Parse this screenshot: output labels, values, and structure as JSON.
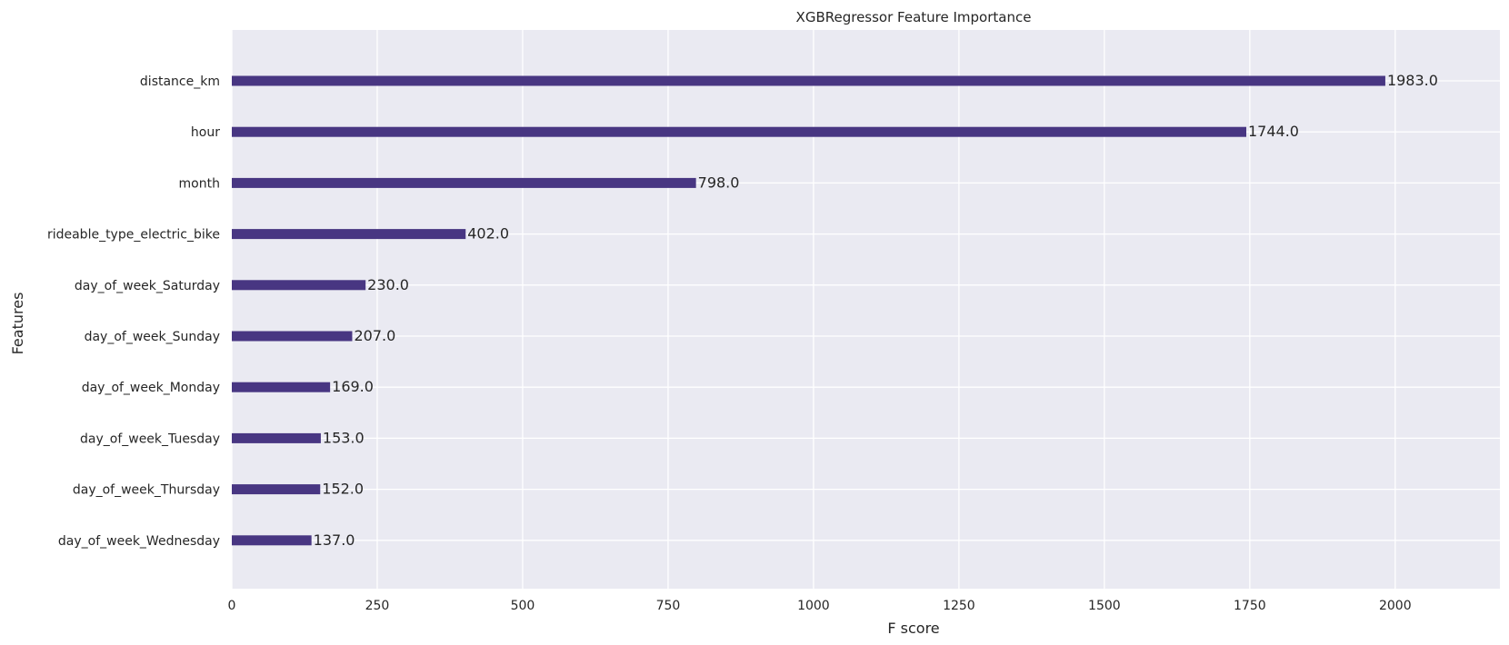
{
  "chart_data": {
    "type": "bar",
    "orientation": "horizontal",
    "title": "XGBRegressor Feature Importance",
    "xlabel": "F score",
    "ylabel": "Features",
    "xlim": [
      0,
      2180
    ],
    "xticks": [
      0,
      250,
      500,
      750,
      1000,
      1250,
      1500,
      1750,
      2000
    ],
    "grid": true,
    "categories": [
      "distance_km",
      "hour",
      "month",
      "rideable_type_electric_bike",
      "day_of_week_Saturday",
      "day_of_week_Sunday",
      "day_of_week_Monday",
      "day_of_week_Tuesday",
      "day_of_week_Thursday",
      "day_of_week_Wednesday"
    ],
    "values": [
      1983,
      1744,
      798,
      402,
      230,
      207,
      169,
      153,
      152,
      137
    ],
    "value_labels": [
      "1983.0",
      "1744.0",
      "798.0",
      "402.0",
      "230.0",
      "207.0",
      "169.0",
      "153.0",
      "152.0",
      "137.0"
    ],
    "bar_color": "#483682",
    "background_color": "#eaeaf2",
    "grid_color": "#ffffff"
  }
}
